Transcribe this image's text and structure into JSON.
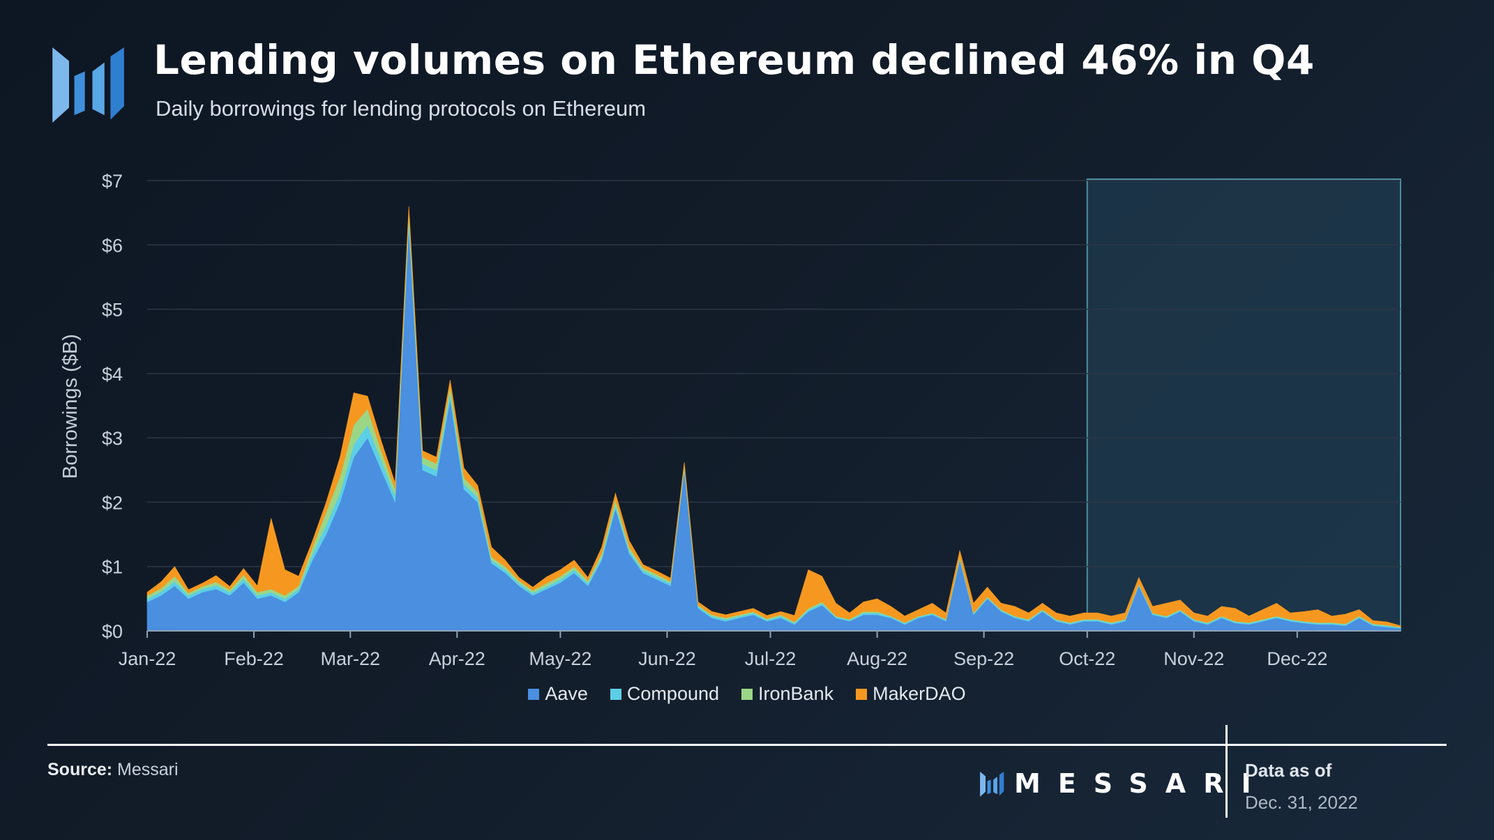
{
  "header": {
    "title": "Lending volumes on Ethereum declined 46% in Q4",
    "subtitle": "Daily borrowings for lending protocols on Ethereum"
  },
  "footer": {
    "source_label": "Source:",
    "source_value": "Messari",
    "brand": "MESSARI",
    "data_as_of_label": "Data as of",
    "data_as_of_date": "Dec. 31, 2022"
  },
  "colors": {
    "aave": "#4a8fe0",
    "compound": "#5ccfe6",
    "ironbank": "#9bd687",
    "makerdao": "#f6981f",
    "highlight_border": "#4d8f9e",
    "highlight_fill": "#1f3b4f"
  },
  "icons": {
    "logo": "messari-logo-icon"
  },
  "chart_data": {
    "type": "area",
    "stacked": true,
    "ylabel": "Borrowings ($B)",
    "xlabel": "",
    "ylim": [
      0,
      7
    ],
    "yticks": [
      "$0",
      "$1",
      "$2",
      "$3",
      "$4",
      "$5",
      "$6",
      "$7"
    ],
    "xticks": [
      "Jan-22",
      "Feb-22",
      "Mar-22",
      "Apr-22",
      "May-22",
      "Jun-22",
      "Jul-22",
      "Aug-22",
      "Sep-22",
      "Oct-22",
      "Nov-22",
      "Dec-22"
    ],
    "grid": "horizontal",
    "legend": "bottom-center",
    "highlight": {
      "label": "Q4",
      "from": "2022-10-01",
      "to": "2022-12-31"
    },
    "x": [
      "2022-01-01",
      "2022-01-05",
      "2022-01-09",
      "2022-01-13",
      "2022-01-17",
      "2022-01-21",
      "2022-01-25",
      "2022-01-29",
      "2022-02-02",
      "2022-02-06",
      "2022-02-10",
      "2022-02-14",
      "2022-02-18",
      "2022-02-22",
      "2022-02-26",
      "2022-03-02",
      "2022-03-06",
      "2022-03-10",
      "2022-03-14",
      "2022-03-18",
      "2022-03-22",
      "2022-03-26",
      "2022-03-30",
      "2022-04-03",
      "2022-04-07",
      "2022-04-11",
      "2022-04-15",
      "2022-04-19",
      "2022-04-23",
      "2022-04-27",
      "2022-05-01",
      "2022-05-05",
      "2022-05-09",
      "2022-05-13",
      "2022-05-17",
      "2022-05-21",
      "2022-05-25",
      "2022-05-29",
      "2022-06-02",
      "2022-06-06",
      "2022-06-10",
      "2022-06-14",
      "2022-06-18",
      "2022-06-22",
      "2022-06-26",
      "2022-06-30",
      "2022-07-04",
      "2022-07-08",
      "2022-07-12",
      "2022-07-16",
      "2022-07-20",
      "2022-07-24",
      "2022-07-28",
      "2022-08-01",
      "2022-08-05",
      "2022-08-09",
      "2022-08-13",
      "2022-08-17",
      "2022-08-21",
      "2022-08-25",
      "2022-08-29",
      "2022-09-02",
      "2022-09-06",
      "2022-09-10",
      "2022-09-14",
      "2022-09-18",
      "2022-09-22",
      "2022-09-26",
      "2022-09-30",
      "2022-10-04",
      "2022-10-08",
      "2022-10-12",
      "2022-10-16",
      "2022-10-20",
      "2022-10-24",
      "2022-10-28",
      "2022-11-01",
      "2022-11-05",
      "2022-11-09",
      "2022-11-13",
      "2022-11-17",
      "2022-11-21",
      "2022-11-25",
      "2022-11-29",
      "2022-12-03",
      "2022-12-07",
      "2022-12-11",
      "2022-12-15",
      "2022-12-19",
      "2022-12-23",
      "2022-12-27",
      "2022-12-31"
    ],
    "series": [
      {
        "name": "Aave",
        "values": [
          0.45,
          0.55,
          0.7,
          0.5,
          0.6,
          0.65,
          0.55,
          0.75,
          0.5,
          0.55,
          0.45,
          0.6,
          1.1,
          1.5,
          2.0,
          2.7,
          3.0,
          2.5,
          2.0,
          6.3,
          2.5,
          2.4,
          3.6,
          2.2,
          2.0,
          1.05,
          0.9,
          0.7,
          0.55,
          0.65,
          0.75,
          0.9,
          0.7,
          1.1,
          1.9,
          1.2,
          0.9,
          0.8,
          0.7,
          2.5,
          0.35,
          0.2,
          0.15,
          0.2,
          0.25,
          0.15,
          0.2,
          0.1,
          0.3,
          0.4,
          0.2,
          0.15,
          0.25,
          0.25,
          0.2,
          0.1,
          0.2,
          0.25,
          0.15,
          1.1,
          0.25,
          0.5,
          0.3,
          0.2,
          0.15,
          0.3,
          0.15,
          0.1,
          0.15,
          0.15,
          0.1,
          0.15,
          0.7,
          0.25,
          0.2,
          0.3,
          0.15,
          0.1,
          0.2,
          0.12,
          0.1,
          0.15,
          0.2,
          0.15,
          0.12,
          0.1,
          0.1,
          0.08,
          0.2,
          0.08,
          0.06,
          0.04
        ]
      },
      {
        "name": "Compound",
        "values": [
          0.05,
          0.06,
          0.07,
          0.05,
          0.05,
          0.06,
          0.05,
          0.06,
          0.05,
          0.05,
          0.05,
          0.05,
          0.1,
          0.15,
          0.15,
          0.2,
          0.2,
          0.15,
          0.1,
          0.1,
          0.1,
          0.1,
          0.1,
          0.08,
          0.08,
          0.05,
          0.05,
          0.04,
          0.04,
          0.04,
          0.05,
          0.05,
          0.04,
          0.05,
          0.06,
          0.05,
          0.04,
          0.04,
          0.04,
          0.04,
          0.03,
          0.03,
          0.03,
          0.03,
          0.03,
          0.02,
          0.03,
          0.02,
          0.03,
          0.03,
          0.02,
          0.02,
          0.03,
          0.03,
          0.02,
          0.02,
          0.02,
          0.02,
          0.02,
          0.03,
          0.02,
          0.02,
          0.02,
          0.02,
          0.02,
          0.02,
          0.02,
          0.02,
          0.02,
          0.02,
          0.02,
          0.02,
          0.02,
          0.02,
          0.02,
          0.02,
          0.02,
          0.02,
          0.02,
          0.02,
          0.02,
          0.02,
          0.02,
          0.02,
          0.02,
          0.02,
          0.02,
          0.02,
          0.02,
          0.02,
          0.02,
          0.01
        ]
      },
      {
        "name": "IronBank",
        "values": [
          0.05,
          0.05,
          0.08,
          0.04,
          0.04,
          0.05,
          0.04,
          0.06,
          0.05,
          0.05,
          0.05,
          0.05,
          0.1,
          0.2,
          0.25,
          0.3,
          0.25,
          0.15,
          0.1,
          0.1,
          0.1,
          0.1,
          0.1,
          0.1,
          0.08,
          0.05,
          0.05,
          0.04,
          0.04,
          0.05,
          0.05,
          0.05,
          0.04,
          0.05,
          0.08,
          0.05,
          0.04,
          0.04,
          0.03,
          0.03,
          0.02,
          0.02,
          0.02,
          0.02,
          0.02,
          0.02,
          0.02,
          0.02,
          0.02,
          0.02,
          0.01,
          0.01,
          0.02,
          0.02,
          0.01,
          0.01,
          0.01,
          0.01,
          0.01,
          0.02,
          0.01,
          0.01,
          0.01,
          0.01,
          0.01,
          0.01,
          0.01,
          0.01,
          0.01,
          0.01,
          0.01,
          0.01,
          0.01,
          0.01,
          0.01,
          0.01,
          0.01,
          0.01,
          0.01,
          0.01,
          0.01,
          0.01,
          0.01,
          0.01,
          0.01,
          0.01,
          0.01,
          0.01,
          0.01,
          0.01,
          0.01,
          0.01
        ]
      },
      {
        "name": "MakerDAO",
        "values": [
          0.05,
          0.1,
          0.15,
          0.05,
          0.05,
          0.1,
          0.05,
          0.1,
          0.1,
          1.1,
          0.4,
          0.15,
          0.1,
          0.15,
          0.3,
          0.5,
          0.2,
          0.15,
          0.1,
          0.1,
          0.1,
          0.1,
          0.1,
          0.15,
          0.1,
          0.15,
          0.1,
          0.05,
          0.05,
          0.1,
          0.1,
          0.1,
          0.05,
          0.1,
          0.1,
          0.1,
          0.05,
          0.05,
          0.05,
          0.05,
          0.05,
          0.05,
          0.05,
          0.05,
          0.05,
          0.05,
          0.05,
          0.1,
          0.6,
          0.4,
          0.2,
          0.1,
          0.15,
          0.2,
          0.15,
          0.1,
          0.1,
          0.15,
          0.1,
          0.1,
          0.15,
          0.15,
          0.1,
          0.15,
          0.1,
          0.1,
          0.1,
          0.1,
          0.1,
          0.1,
          0.1,
          0.1,
          0.1,
          0.1,
          0.2,
          0.15,
          0.1,
          0.1,
          0.15,
          0.2,
          0.1,
          0.15,
          0.2,
          0.1,
          0.15,
          0.2,
          0.1,
          0.15,
          0.1,
          0.05,
          0.05,
          0.02
        ]
      }
    ]
  }
}
